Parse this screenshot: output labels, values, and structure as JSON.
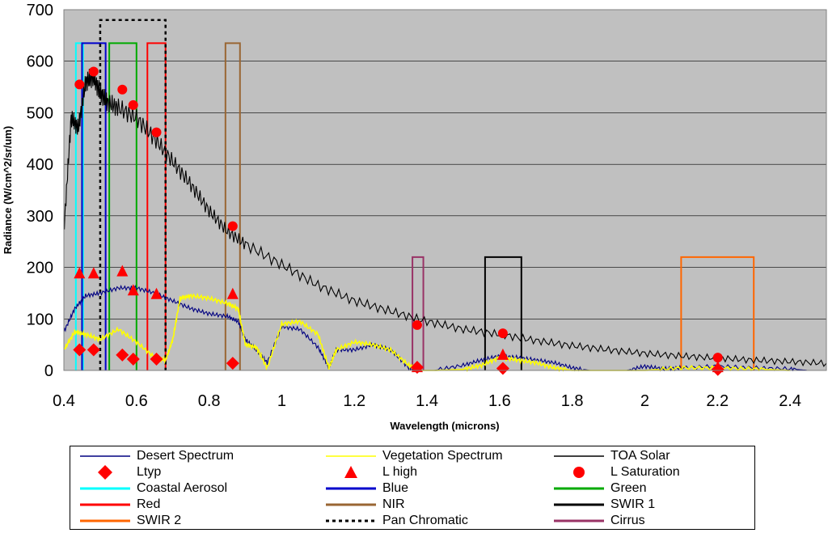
{
  "chart_data": {
    "type": "line",
    "title": "",
    "xlabel": "Wavelength (microns)",
    "ylabel": "Radiance (W/cm^2/sr/um)",
    "xlim": [
      0.4,
      2.5
    ],
    "ylim": [
      0,
      700
    ],
    "xticks": [
      "0.4",
      "0.6",
      "0.8",
      "1",
      "1.2",
      "1.4",
      "1.6",
      "1.8",
      "2",
      "2.2",
      "2.4"
    ],
    "xtick_values": [
      0.4,
      0.6,
      0.8,
      1.0,
      1.2,
      1.4,
      1.6,
      1.8,
      2.0,
      2.2,
      2.4
    ],
    "yticks": [
      "0",
      "100",
      "200",
      "300",
      "400",
      "500",
      "600",
      "700"
    ],
    "ytick_values": [
      0,
      100,
      200,
      300,
      400,
      500,
      600,
      700
    ],
    "plot_background": "#c0c0c0",
    "series": [
      {
        "name": "Desert Spectrum",
        "color": "#000080",
        "style": "line",
        "x": [
          0.4,
          0.43,
          0.46,
          0.5,
          0.55,
          0.6,
          0.65,
          0.7,
          0.75,
          0.8,
          0.85,
          0.88,
          0.9,
          0.93,
          0.96,
          1.0,
          1.05,
          1.1,
          1.13,
          1.15,
          1.2,
          1.25,
          1.3,
          1.35,
          1.38,
          1.42,
          1.5,
          1.55,
          1.6,
          1.65,
          1.7,
          1.75,
          1.8,
          1.85,
          1.95,
          2.0,
          2.05,
          2.1,
          2.2,
          2.3,
          2.4,
          2.45
        ],
        "y": [
          75,
          120,
          145,
          150,
          160,
          160,
          150,
          135,
          120,
          110,
          105,
          95,
          60,
          40,
          15,
          85,
          80,
          45,
          5,
          40,
          40,
          50,
          40,
          5,
          0,
          0,
          10,
          20,
          28,
          25,
          20,
          15,
          5,
          0,
          0,
          8,
          3,
          5,
          8,
          5,
          3,
          0
        ]
      },
      {
        "name": "Vegetation Spectrum",
        "color": "#ffff00",
        "style": "line",
        "x": [
          0.4,
          0.43,
          0.46,
          0.5,
          0.55,
          0.6,
          0.65,
          0.68,
          0.7,
          0.72,
          0.75,
          0.8,
          0.85,
          0.88,
          0.9,
          0.93,
          0.96,
          1.0,
          1.05,
          1.1,
          1.13,
          1.15,
          1.2,
          1.25,
          1.3,
          1.35,
          1.38,
          1.42,
          1.5,
          1.55,
          1.6,
          1.65,
          1.7,
          1.75,
          1.8,
          1.85,
          2.0,
          2.1,
          2.2,
          2.3,
          2.4
        ],
        "y": [
          40,
          75,
          70,
          60,
          80,
          55,
          25,
          20,
          60,
          140,
          145,
          140,
          130,
          120,
          50,
          45,
          5,
          90,
          95,
          70,
          5,
          40,
          55,
          50,
          40,
          10,
          0,
          0,
          2,
          10,
          25,
          20,
          15,
          5,
          0,
          0,
          0,
          5,
          5,
          3,
          0
        ]
      },
      {
        "name": "TOA Solar",
        "color": "#000000",
        "style": "line",
        "x": [
          0.4,
          0.42,
          0.44,
          0.46,
          0.48,
          0.5,
          0.52,
          0.55,
          0.6,
          0.65,
          0.7,
          0.75,
          0.8,
          0.85,
          0.9,
          1.0,
          1.1,
          1.2,
          1.3,
          1.4,
          1.5,
          1.6,
          1.7,
          1.8,
          1.9,
          2.0,
          2.1,
          2.2,
          2.3,
          2.4,
          2.5
        ],
        "y": [
          270,
          490,
          470,
          560,
          570,
          540,
          520,
          510,
          490,
          450,
          405,
          360,
          310,
          270,
          245,
          205,
          165,
          135,
          115,
          95,
          80,
          70,
          58,
          48,
          40,
          33,
          28,
          24,
          20,
          17,
          14
        ]
      },
      {
        "name": "Ltyp",
        "color": "#ff0000",
        "style": "marker",
        "marker": "diamond",
        "x": [
          0.443,
          0.482,
          0.561,
          0.591,
          0.655,
          0.865,
          1.373,
          1.609,
          2.201
        ],
        "y": [
          40,
          40,
          30,
          22,
          22,
          14,
          6,
          4,
          2
        ]
      },
      {
        "name": "L high",
        "color": "#ff0000",
        "style": "marker",
        "marker": "triangle",
        "x": [
          0.443,
          0.482,
          0.561,
          0.591,
          0.655,
          0.865,
          1.373,
          1.609,
          2.201
        ],
        "y": [
          188,
          188,
          192,
          155,
          148,
          148,
          6,
          30,
          6
        ]
      },
      {
        "name": "L Saturation",
        "color": "#ff0000",
        "style": "marker",
        "marker": "circle",
        "x": [
          0.443,
          0.482,
          0.561,
          0.591,
          0.655,
          0.865,
          1.373,
          1.609,
          2.201
        ],
        "y": [
          555,
          580,
          545,
          515,
          462,
          280,
          88,
          72,
          25
        ]
      }
    ],
    "bands": [
      {
        "name": "Coastal Aerosol",
        "color": "#00ffff",
        "x0": 0.433,
        "x1": 0.453,
        "top": 635,
        "dash": false
      },
      {
        "name": "Blue",
        "color": "#0000cc",
        "x0": 0.45,
        "x1": 0.515,
        "top": 635,
        "dash": false
      },
      {
        "name": "Green",
        "color": "#00aa00",
        "x0": 0.525,
        "x1": 0.6,
        "top": 635,
        "dash": false
      },
      {
        "name": "Red",
        "color": "#ff0000",
        "x0": 0.63,
        "x1": 0.68,
        "top": 635,
        "dash": false
      },
      {
        "name": "NIR",
        "color": "#996633",
        "x0": 0.845,
        "x1": 0.885,
        "top": 635,
        "dash": false
      },
      {
        "name": "SWIR 1",
        "color": "#000000",
        "x0": 1.56,
        "x1": 1.66,
        "top": 220,
        "dash": false
      },
      {
        "name": "SWIR 2",
        "color": "#ff6600",
        "x0": 2.1,
        "x1": 2.3,
        "top": 220,
        "dash": false
      },
      {
        "name": "Pan Chromatic",
        "color": "#000000",
        "x0": 0.5,
        "x1": 0.68,
        "top": 680,
        "dash": true
      },
      {
        "name": "Cirrus",
        "color": "#993366",
        "x0": 1.36,
        "x1": 1.39,
        "top": 220,
        "dash": false
      }
    ],
    "legend": [
      {
        "name": "Desert Spectrum",
        "color": "#000080",
        "kind": "line"
      },
      {
        "name": "Vegetation Spectrum",
        "color": "#ffff00",
        "kind": "line"
      },
      {
        "name": "TOA Solar",
        "color": "#000000",
        "kind": "line"
      },
      {
        "name": "Ltyp",
        "color": "#ff0000",
        "kind": "diamond"
      },
      {
        "name": "L high",
        "color": "#ff0000",
        "kind": "triangle"
      },
      {
        "name": "L Saturation",
        "color": "#ff0000",
        "kind": "circle"
      },
      {
        "name": "Coastal Aerosol",
        "color": "#00ffff",
        "kind": "thick"
      },
      {
        "name": "Blue",
        "color": "#0000cc",
        "kind": "thick"
      },
      {
        "name": "Green",
        "color": "#00aa00",
        "kind": "thick"
      },
      {
        "name": "Red",
        "color": "#ff0000",
        "kind": "thick"
      },
      {
        "name": "NIR",
        "color": "#996633",
        "kind": "thick"
      },
      {
        "name": "SWIR 1",
        "color": "#000000",
        "kind": "thick"
      },
      {
        "name": "SWIR 2",
        "color": "#ff6600",
        "kind": "thick"
      },
      {
        "name": "Pan Chromatic",
        "color": "#000000",
        "kind": "dash"
      },
      {
        "name": "Cirrus",
        "color": "#993366",
        "kind": "thick"
      }
    ]
  }
}
